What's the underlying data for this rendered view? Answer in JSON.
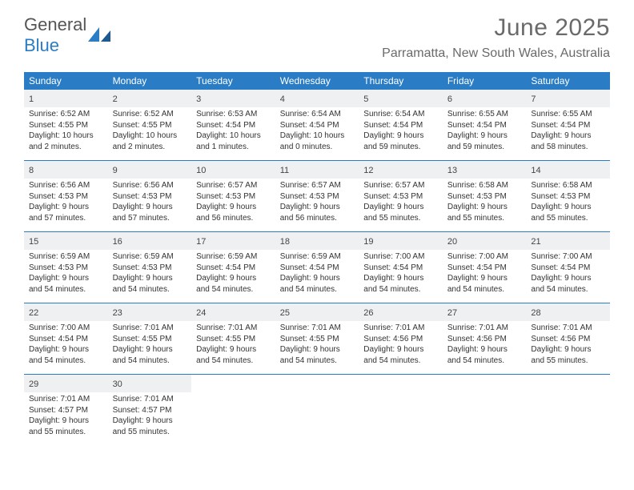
{
  "brand": {
    "name_part1": "General",
    "name_part2": "Blue"
  },
  "title": "June 2025",
  "location": "Parramatta, New South Wales, Australia",
  "colors": {
    "primary": "#2a7cc4",
    "grey_bg": "#eef0f2",
    "text_grey": "#6a6a6a",
    "text_dark": "#333333"
  },
  "dow": [
    "Sunday",
    "Monday",
    "Tuesday",
    "Wednesday",
    "Thursday",
    "Friday",
    "Saturday"
  ],
  "days": [
    {
      "n": 1,
      "sr": "6:52 AM",
      "ss": "4:55 PM",
      "dl": "10 hours and 2 minutes."
    },
    {
      "n": 2,
      "sr": "6:52 AM",
      "ss": "4:55 PM",
      "dl": "10 hours and 2 minutes."
    },
    {
      "n": 3,
      "sr": "6:53 AM",
      "ss": "4:54 PM",
      "dl": "10 hours and 1 minutes."
    },
    {
      "n": 4,
      "sr": "6:54 AM",
      "ss": "4:54 PM",
      "dl": "10 hours and 0 minutes."
    },
    {
      "n": 5,
      "sr": "6:54 AM",
      "ss": "4:54 PM",
      "dl": "9 hours and 59 minutes."
    },
    {
      "n": 6,
      "sr": "6:55 AM",
      "ss": "4:54 PM",
      "dl": "9 hours and 59 minutes."
    },
    {
      "n": 7,
      "sr": "6:55 AM",
      "ss": "4:54 PM",
      "dl": "9 hours and 58 minutes."
    },
    {
      "n": 8,
      "sr": "6:56 AM",
      "ss": "4:53 PM",
      "dl": "9 hours and 57 minutes."
    },
    {
      "n": 9,
      "sr": "6:56 AM",
      "ss": "4:53 PM",
      "dl": "9 hours and 57 minutes."
    },
    {
      "n": 10,
      "sr": "6:57 AM",
      "ss": "4:53 PM",
      "dl": "9 hours and 56 minutes."
    },
    {
      "n": 11,
      "sr": "6:57 AM",
      "ss": "4:53 PM",
      "dl": "9 hours and 56 minutes."
    },
    {
      "n": 12,
      "sr": "6:57 AM",
      "ss": "4:53 PM",
      "dl": "9 hours and 55 minutes."
    },
    {
      "n": 13,
      "sr": "6:58 AM",
      "ss": "4:53 PM",
      "dl": "9 hours and 55 minutes."
    },
    {
      "n": 14,
      "sr": "6:58 AM",
      "ss": "4:53 PM",
      "dl": "9 hours and 55 minutes."
    },
    {
      "n": 15,
      "sr": "6:59 AM",
      "ss": "4:53 PM",
      "dl": "9 hours and 54 minutes."
    },
    {
      "n": 16,
      "sr": "6:59 AM",
      "ss": "4:53 PM",
      "dl": "9 hours and 54 minutes."
    },
    {
      "n": 17,
      "sr": "6:59 AM",
      "ss": "4:54 PM",
      "dl": "9 hours and 54 minutes."
    },
    {
      "n": 18,
      "sr": "6:59 AM",
      "ss": "4:54 PM",
      "dl": "9 hours and 54 minutes."
    },
    {
      "n": 19,
      "sr": "7:00 AM",
      "ss": "4:54 PM",
      "dl": "9 hours and 54 minutes."
    },
    {
      "n": 20,
      "sr": "7:00 AM",
      "ss": "4:54 PM",
      "dl": "9 hours and 54 minutes."
    },
    {
      "n": 21,
      "sr": "7:00 AM",
      "ss": "4:54 PM",
      "dl": "9 hours and 54 minutes."
    },
    {
      "n": 22,
      "sr": "7:00 AM",
      "ss": "4:54 PM",
      "dl": "9 hours and 54 minutes."
    },
    {
      "n": 23,
      "sr": "7:01 AM",
      "ss": "4:55 PM",
      "dl": "9 hours and 54 minutes."
    },
    {
      "n": 24,
      "sr": "7:01 AM",
      "ss": "4:55 PM",
      "dl": "9 hours and 54 minutes."
    },
    {
      "n": 25,
      "sr": "7:01 AM",
      "ss": "4:55 PM",
      "dl": "9 hours and 54 minutes."
    },
    {
      "n": 26,
      "sr": "7:01 AM",
      "ss": "4:56 PM",
      "dl": "9 hours and 54 minutes."
    },
    {
      "n": 27,
      "sr": "7:01 AM",
      "ss": "4:56 PM",
      "dl": "9 hours and 54 minutes."
    },
    {
      "n": 28,
      "sr": "7:01 AM",
      "ss": "4:56 PM",
      "dl": "9 hours and 55 minutes."
    },
    {
      "n": 29,
      "sr": "7:01 AM",
      "ss": "4:57 PM",
      "dl": "9 hours and 55 minutes."
    },
    {
      "n": 30,
      "sr": "7:01 AM",
      "ss": "4:57 PM",
      "dl": "9 hours and 55 minutes."
    }
  ],
  "labels": {
    "sunrise": "Sunrise:",
    "sunset": "Sunset:",
    "daylight": "Daylight:"
  },
  "layout": {
    "start_dow": 0,
    "columns": 7
  }
}
